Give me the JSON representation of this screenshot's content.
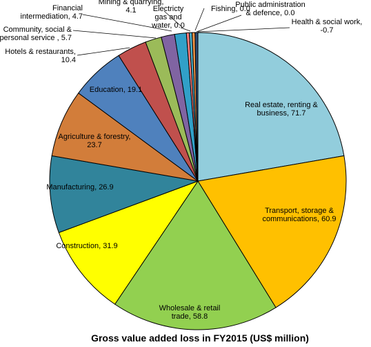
{
  "chart_data": {
    "type": "pie",
    "title": "Gross value added loss in FY2015 (US$ million)",
    "slices": [
      {
        "label": "Real estate, renting & business",
        "display": [
          "Real estate, renting &",
          "business, 71.7"
        ],
        "value": 71.7,
        "color": "#92cddc"
      },
      {
        "label": "Transport, storage & communications",
        "display": [
          "Transport, storage &",
          "communications, 60.9"
        ],
        "value": 60.9,
        "color": "#ffc000"
      },
      {
        "label": "Wholesale & retail trade",
        "display": [
          "Wholesale & retail",
          "trade, 58.8"
        ],
        "value": 58.8,
        "color": "#92d050"
      },
      {
        "label": "Construction",
        "display": [
          "Construction, 31.9"
        ],
        "value": 31.9,
        "color": "#ffff00"
      },
      {
        "label": "Manufacturing",
        "display": [
          "Manufacturing, 26.9"
        ],
        "value": 26.9,
        "color": "#31849b"
      },
      {
        "label": "Agriculture & forestry",
        "display": [
          "Agriculture & forestry,",
          "23.7"
        ],
        "value": 23.7,
        "color": "#d27d3a"
      },
      {
        "label": "Education",
        "display": [
          "Education, 19.1"
        ],
        "value": 19.1,
        "color": "#4f81bd"
      },
      {
        "label": "Hotels & restaurants",
        "display": [
          "Hotels & restaurants,",
          "10.4"
        ],
        "value": 10.4,
        "color": "#c0504d"
      },
      {
        "label": "Community, social & personal service",
        "display": [
          "Community,  social &",
          "personal service , 5.7"
        ],
        "value": 5.7,
        "color": "#9bbb59"
      },
      {
        "label": "Financial intermediation",
        "display": [
          "Financial",
          "intermediation, 4.7"
        ],
        "value": 4.7,
        "color": "#8064a2"
      },
      {
        "label": "Mining & quarrying",
        "display": [
          "Mining & quarrying,",
          "4.1"
        ],
        "value": 4.1,
        "color": "#31a0c8"
      },
      {
        "label": "Electricity gas and water",
        "display": [
          "Electricty",
          "gas and",
          "water, 0.0"
        ],
        "value": 0.0,
        "color": "#ff8080"
      },
      {
        "label": "Fishing",
        "display": [
          "Fishing, 0.0"
        ],
        "value": 0.0,
        "color": "#4bacc6"
      },
      {
        "label": "Public administration & defence",
        "display": [
          "Public administration",
          "& defence, 0.0"
        ],
        "value": 0.0,
        "color": "#f79646"
      },
      {
        "label": "Health & social work",
        "display": [
          "Health & social work,",
          "-0.7"
        ],
        "value": -0.7,
        "color": "#2c4d75"
      }
    ]
  }
}
